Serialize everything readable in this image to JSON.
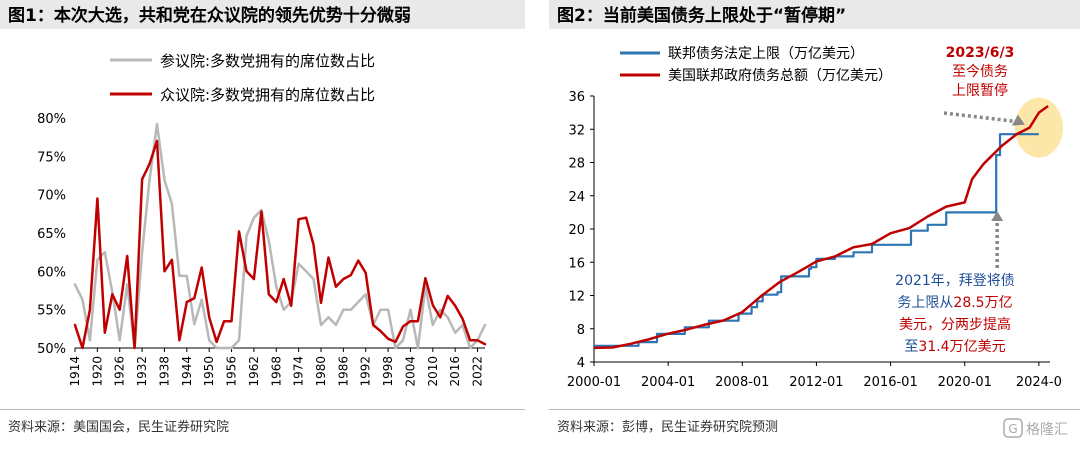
{
  "colors": {
    "panel_bg": "#e9e9e9",
    "red": "#c00000",
    "gray": "#b8b8b8",
    "blue": "#2e75b6",
    "highlight": "#fbe39a",
    "annotation_blue": "#1f4e99",
    "annotation_red": "#c00000"
  },
  "chart_data": [
    {
      "type": "line",
      "title": "图1：本次大选，共和党在众议院的领先优势十分微弱",
      "source": "资料来源：美国国会，民生证券研究院",
      "ylim": [
        0.5,
        0.8
      ],
      "yticks": [
        0.5,
        0.55,
        0.6,
        0.65,
        0.7,
        0.75,
        0.8
      ],
      "ytick_labels": [
        "50%",
        "55%",
        "60%",
        "65%",
        "70%",
        "75%",
        "80%"
      ],
      "xlim": [
        1914,
        2024
      ],
      "xticks": [
        1914,
        1920,
        1926,
        1932,
        1938,
        1944,
        1950,
        1956,
        1962,
        1968,
        1974,
        1980,
        1986,
        1992,
        1998,
        2004,
        2010,
        2016,
        2022
      ],
      "xtick_labels": [
        "1914",
        "1920",
        "1926",
        "1932",
        "1938",
        "1944",
        "1950",
        "1956",
        "1962",
        "1968",
        "1974",
        "1980",
        "1986",
        "1992",
        "1998",
        "2004",
        "2010",
        "2016",
        "2022"
      ],
      "legend_position": "top-left",
      "series": [
        {
          "name": "参议院:多数党拥有的席位数占比",
          "color": "gray",
          "x": [
            1914,
            1916,
            1918,
            1920,
            1922,
            1924,
            1926,
            1928,
            1930,
            1932,
            1934,
            1936,
            1938,
            1940,
            1942,
            1944,
            1946,
            1948,
            1950,
            1952,
            1954,
            1956,
            1958,
            1960,
            1962,
            1964,
            1966,
            1968,
            1970,
            1972,
            1974,
            1976,
            1978,
            1980,
            1982,
            1984,
            1986,
            1988,
            1990,
            1992,
            1994,
            1996,
            1998,
            2000,
            2002,
            2004,
            2006,
            2008,
            2010,
            2012,
            2014,
            2016,
            2018,
            2020,
            2022,
            2024
          ],
          "y": [
            0.583,
            0.563,
            0.51,
            0.615,
            0.625,
            0.573,
            0.51,
            0.583,
            0.5,
            0.625,
            0.719,
            0.792,
            0.719,
            0.688,
            0.594,
            0.594,
            0.531,
            0.563,
            0.51,
            0.5,
            0.5,
            0.5,
            0.51,
            0.646,
            0.67,
            0.68,
            0.64,
            0.58,
            0.55,
            0.56,
            0.61,
            0.6,
            0.59,
            0.53,
            0.54,
            0.53,
            0.55,
            0.55,
            0.56,
            0.57,
            0.53,
            0.55,
            0.55,
            0.5,
            0.51,
            0.55,
            0.5,
            0.58,
            0.53,
            0.55,
            0.54,
            0.52,
            0.53,
            0.5,
            0.51,
            0.53
          ]
        },
        {
          "name": "众议院:多数党拥有的席位数占比",
          "color": "red",
          "x": [
            1914,
            1916,
            1918,
            1920,
            1922,
            1924,
            1926,
            1928,
            1930,
            1932,
            1934,
            1936,
            1938,
            1940,
            1942,
            1944,
            1946,
            1948,
            1950,
            1952,
            1954,
            1956,
            1958,
            1960,
            1962,
            1964,
            1966,
            1968,
            1970,
            1972,
            1974,
            1976,
            1978,
            1980,
            1982,
            1984,
            1986,
            1988,
            1990,
            1992,
            1994,
            1996,
            1998,
            2000,
            2002,
            2004,
            2006,
            2008,
            2010,
            2012,
            2014,
            2016,
            2018,
            2020,
            2022,
            2024
          ],
          "y": [
            0.53,
            0.5,
            0.55,
            0.695,
            0.52,
            0.57,
            0.55,
            0.62,
            0.5,
            0.72,
            0.74,
            0.77,
            0.6,
            0.615,
            0.51,
            0.56,
            0.565,
            0.605,
            0.54,
            0.508,
            0.535,
            0.535,
            0.652,
            0.6,
            0.59,
            0.678,
            0.57,
            0.56,
            0.59,
            0.555,
            0.668,
            0.67,
            0.635,
            0.559,
            0.618,
            0.58,
            0.59,
            0.595,
            0.614,
            0.598,
            0.53,
            0.522,
            0.512,
            0.508,
            0.528,
            0.535,
            0.535,
            0.591,
            0.556,
            0.54,
            0.568,
            0.555,
            0.538,
            0.51,
            0.51,
            0.505
          ]
        }
      ]
    },
    {
      "type": "line",
      "title": "图2：当前美国债务上限处于“暂停期”",
      "source": "资料来源：彭博，民生证券研究院预测",
      "ylim": [
        4,
        36
      ],
      "yticks": [
        4,
        8,
        12,
        16,
        20,
        24,
        28,
        32,
        36
      ],
      "ytick_labels": [
        "4",
        "8",
        "12",
        "16",
        "20",
        "24",
        "28",
        "32",
        "36"
      ],
      "xlim": [
        2000.0,
        2024.6
      ],
      "xticks": [
        2000.0,
        2004.0,
        2008.0,
        2012.0,
        2016.0,
        2020.0,
        2024.0
      ],
      "xtick_labels": [
        "2000-01",
        "2004-01",
        "2008-01",
        "2012-01",
        "2016-01",
        "2020-01",
        "2024-0"
      ],
      "legend_position": "top-left",
      "series": [
        {
          "name": "联邦债务法定上限（万亿美元）",
          "color": "blue",
          "step": true,
          "x": [
            2000.0,
            2002.4,
            2003.4,
            2004.9,
            2006.2,
            2007.8,
            2008.5,
            2008.8,
            2009.1,
            2009.9,
            2010.1,
            2011.6,
            2011.7,
            2012.0,
            2013.0,
            2014.0,
            2015.0,
            2017.1,
            2018.0,
            2019.0,
            2019.6,
            2021.7,
            2021.9,
            2024.0
          ],
          "y": [
            5.95,
            6.4,
            7.38,
            8.18,
            8.97,
            9.82,
            10.6,
            11.3,
            12.1,
            12.4,
            14.3,
            15.2,
            15.4,
            16.4,
            16.7,
            17.2,
            18.1,
            19.8,
            20.5,
            22.0,
            22.0,
            28.9,
            31.4,
            31.4
          ]
        },
        {
          "name": "美国联邦政府债务总额（万亿美元）",
          "color": "red",
          "x": [
            2000.0,
            2001.0,
            2002.0,
            2003.0,
            2004.0,
            2005.0,
            2006.0,
            2007.0,
            2008.0,
            2009.0,
            2010.0,
            2011.0,
            2012.0,
            2013.0,
            2014.0,
            2015.0,
            2016.0,
            2017.0,
            2018.0,
            2019.0,
            2020.0,
            2020.4,
            2021.0,
            2022.0,
            2022.8,
            2023.5,
            2024.0,
            2024.5
          ],
          "y": [
            5.7,
            5.75,
            6.2,
            6.75,
            7.4,
            7.9,
            8.5,
            9.0,
            10.0,
            11.9,
            13.6,
            14.8,
            16.1,
            16.7,
            17.8,
            18.2,
            19.5,
            20.1,
            21.5,
            22.7,
            23.2,
            26.0,
            27.8,
            30.0,
            31.4,
            32.2,
            34.0,
            34.8
          ]
        }
      ],
      "annotations": [
        {
          "lines": [
            "2023/6/3",
            "至今债务",
            "上限暂停"
          ]
        },
        {
          "lines": [
            [
              {
                "t": "2021年，拜登将债",
                "c": "blue"
              }
            ],
            [
              {
                "t": "务上限从",
                "c": "blue"
              },
              {
                "t": "28.5万亿",
                "c": "red"
              }
            ],
            [
              {
                "t": "美元，分两步提高",
                "c": "red"
              }
            ],
            [
              {
                "t": "至",
                "c": "blue"
              },
              {
                "t": "31.4万亿美元",
                "c": "red"
              }
            ]
          ]
        }
      ]
    }
  ],
  "watermark": {
    "text": "格隆汇",
    "logo": "G"
  }
}
